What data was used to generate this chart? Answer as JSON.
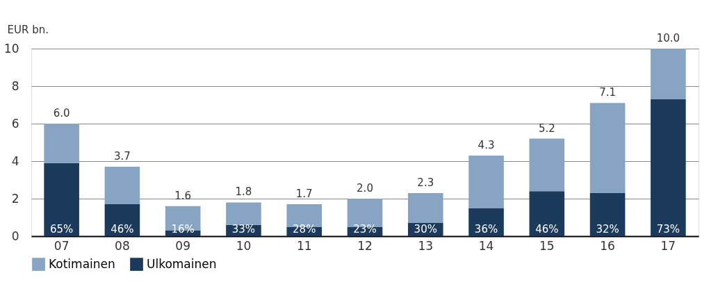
{
  "chart_data": {
    "type": "bar",
    "stacked": true,
    "ylabel": "EUR bn.",
    "categories": [
      "07",
      "08",
      "09",
      "10",
      "11",
      "12",
      "13",
      "14",
      "15",
      "16",
      "17"
    ],
    "series": [
      {
        "name": "Ulkomainen",
        "color": "#1b3a5c",
        "values": [
          3.9,
          1.7,
          0.3,
          0.6,
          0.5,
          0.5,
          0.7,
          1.5,
          2.4,
          2.3,
          7.3
        ]
      },
      {
        "name": "Kotimainen",
        "color": "#87a5c3",
        "values": [
          2.1,
          2.0,
          1.3,
          1.2,
          1.2,
          1.5,
          1.6,
          2.8,
          2.8,
          4.8,
          2.7
        ]
      }
    ],
    "annotations": [
      {
        "text": "65%",
        "x": "07",
        "y": 0
      },
      {
        "text": "46%",
        "x": "08",
        "y": 0
      },
      {
        "text": "16%",
        "x": "09",
        "y": 0
      },
      {
        "text": "33%",
        "x": "10",
        "y": 0
      },
      {
        "text": "28%",
        "x": "11",
        "y": 0
      },
      {
        "text": "23%",
        "x": "12",
        "y": 0
      },
      {
        "text": "30%",
        "x": "13",
        "y": 0
      },
      {
        "text": "36%",
        "x": "14",
        "y": 0
      },
      {
        "text": "46%",
        "x": "15",
        "y": 0
      },
      {
        "text": "32%",
        "x": "16",
        "y": 0
      },
      {
        "text": "73%",
        "x": "17",
        "y": 0
      }
    ],
    "totals": [
      "6.0",
      "3.7",
      "1.6",
      "1.8",
      "1.7",
      "2.0",
      "2.3",
      "4.3",
      "5.2",
      "7.1",
      "10.0"
    ],
    "ylim": [
      0,
      10
    ],
    "yticks": [
      0,
      2,
      4,
      6,
      8,
      10
    ],
    "grid": "y",
    "legend": "bottom left"
  }
}
